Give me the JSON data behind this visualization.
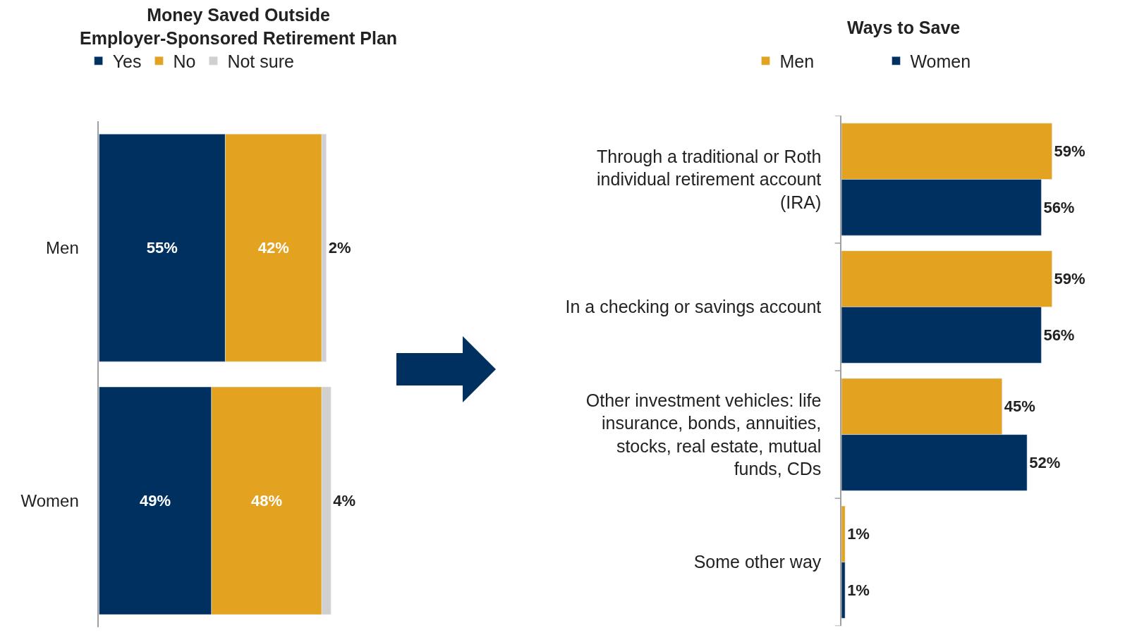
{
  "chart_data": [
    {
      "type": "bar",
      "title": "Money Saved Outside Employer-Sponsored Retirement Plan",
      "orientation": "horizontal",
      "stacked": true,
      "categories": [
        "Men",
        "Women"
      ],
      "series": [
        {
          "name": "Yes",
          "color": "#003060",
          "values": [
            55,
            49
          ],
          "value_labels": [
            "55%",
            "49%"
          ]
        },
        {
          "name": "No",
          "color": "#e3a21f",
          "values": [
            42,
            48
          ],
          "value_labels": [
            "42%",
            "48%"
          ]
        },
        {
          "name": "Not sure",
          "color": "#d0d0d0",
          "values": [
            2,
            4
          ],
          "value_labels": [
            "2%",
            "4%"
          ]
        }
      ],
      "legend": "top",
      "tick_labels": "y"
    },
    {
      "type": "bar",
      "title": "Ways to Save",
      "orientation": "horizontal",
      "categories": [
        "Through a traditional or Roth individual retirement account (IRA)",
        "In a checking or savings account",
        "Other investment vehicles: life insurance, bonds, annuities, stocks, real estate, mutual funds, CDs",
        "Some other way"
      ],
      "series": [
        {
          "name": "Men",
          "color": "#e3a21f",
          "values": [
            59,
            59,
            45,
            1
          ],
          "value_labels": [
            "59%",
            "59%",
            "45%",
            "1%"
          ]
        },
        {
          "name": "Women",
          "color": "#003060",
          "values": [
            56,
            56,
            52,
            1
          ],
          "value_labels": [
            "56%",
            "56%",
            "52%",
            "1%"
          ]
        }
      ],
      "legend": "top",
      "tick_labels": "y"
    }
  ]
}
